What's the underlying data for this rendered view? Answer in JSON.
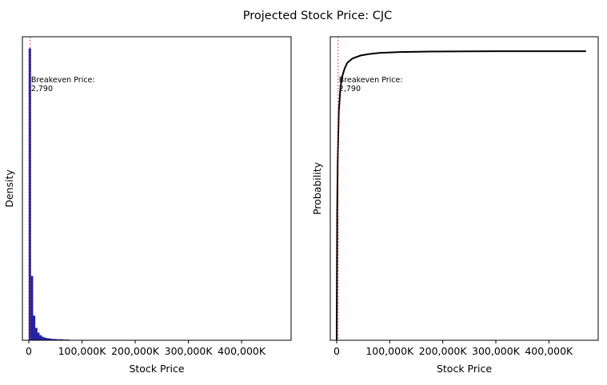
{
  "figure": {
    "title": "Projected Stock Price: CJC"
  },
  "colors": {
    "bar_fill": "#1f1f9e",
    "bar_edge": "#3a3ab0",
    "breakeven_line": "#d62728",
    "cdf_line": "#000000",
    "axes": "#000000"
  },
  "chart_data": [
    {
      "type": "bar",
      "xlabel": "Stock Price",
      "ylabel": "Density",
      "xlim": [
        -12000,
        493000
      ],
      "ylim": [
        0,
        1.04
      ],
      "y_ticks_visible": false,
      "x_ticks": [
        0,
        100000,
        200000,
        300000,
        400000
      ],
      "x_tick_labels": [
        "0",
        "100,000K",
        "200,000K",
        "300,000K",
        "400,000K"
      ],
      "bin_width": 4000,
      "bins": [
        {
          "x0": 0,
          "density": 1.0
        },
        {
          "x0": 4000,
          "density": 0.22
        },
        {
          "x0": 8000,
          "density": 0.084
        },
        {
          "x0": 12000,
          "density": 0.042
        },
        {
          "x0": 16000,
          "density": 0.026
        },
        {
          "x0": 20000,
          "density": 0.017
        },
        {
          "x0": 24000,
          "density": 0.012
        },
        {
          "x0": 28000,
          "density": 0.009
        },
        {
          "x0": 32000,
          "density": 0.007
        },
        {
          "x0": 36000,
          "density": 0.006
        },
        {
          "x0": 40000,
          "density": 0.005
        },
        {
          "x0": 44000,
          "density": 0.004
        },
        {
          "x0": 48000,
          "density": 0.004
        },
        {
          "x0": 52000,
          "density": 0.003
        },
        {
          "x0": 56000,
          "density": 0.003
        },
        {
          "x0": 60000,
          "density": 0.003
        },
        {
          "x0": 64000,
          "density": 0.002
        },
        {
          "x0": 68000,
          "density": 0.002
        },
        {
          "x0": 72000,
          "density": 0.002
        },
        {
          "x0": 76000,
          "density": 0.001
        }
      ],
      "breakeven": {
        "x": 2790,
        "label_line1": "Breakeven Price:",
        "label_line2": "2,790"
      }
    },
    {
      "type": "line",
      "xlabel": "Stock Price",
      "ylabel": "Probability",
      "xlim": [
        -12000,
        493000
      ],
      "ylim": [
        0,
        1.05
      ],
      "y_ticks_visible": false,
      "x_ticks": [
        0,
        100000,
        200000,
        300000,
        400000
      ],
      "x_tick_labels": [
        "0",
        "100,000K",
        "200,000K",
        "300,000K",
        "400,000K"
      ],
      "x": [
        0,
        1000,
        2000,
        4000,
        7000,
        10000,
        15000,
        20000,
        30000,
        45000,
        60000,
        80000,
        120000,
        180000,
        300000,
        470000
      ],
      "y": [
        0.0,
        0.45,
        0.62,
        0.79,
        0.87,
        0.91,
        0.94,
        0.96,
        0.975,
        0.985,
        0.99,
        0.994,
        0.997,
        0.999,
        1.0,
        1.0
      ],
      "breakeven": {
        "x": 2790,
        "label_line1": "Breakeven Price:",
        "label_line2": "2,790"
      }
    }
  ]
}
